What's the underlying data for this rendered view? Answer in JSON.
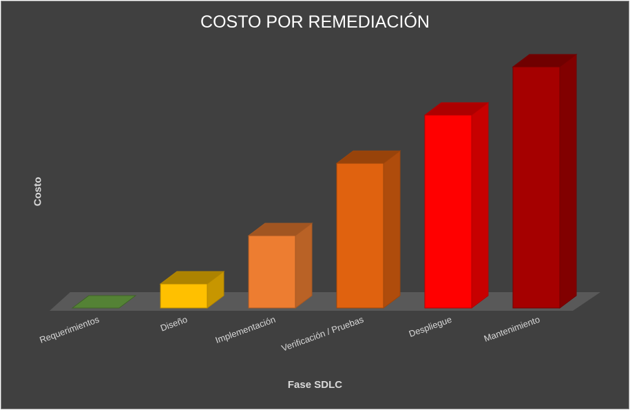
{
  "chart_data": {
    "type": "bar",
    "title": "COSTO POR REMEDIACIÓN",
    "xlabel": "Fase SDLC",
    "ylabel": "Costo",
    "categories": [
      "Requerimientos",
      "Diseño",
      "Implementación",
      "Verificación / Pruebas",
      "Despliegue",
      "Mantenimiento"
    ],
    "series": [
      {
        "values": [
          0,
          1,
          3,
          6,
          8,
          10
        ]
      }
    ],
    "ylim": [
      0,
      10
    ],
    "grid": false,
    "legend": "none",
    "three_d": true,
    "colors": {
      "bars": [
        "#548235",
        "#FFC000",
        "#ED7D31",
        "#E0620F",
        "#FF0000",
        "#A50000"
      ],
      "background": "#404040",
      "floor": "#595959"
    }
  }
}
